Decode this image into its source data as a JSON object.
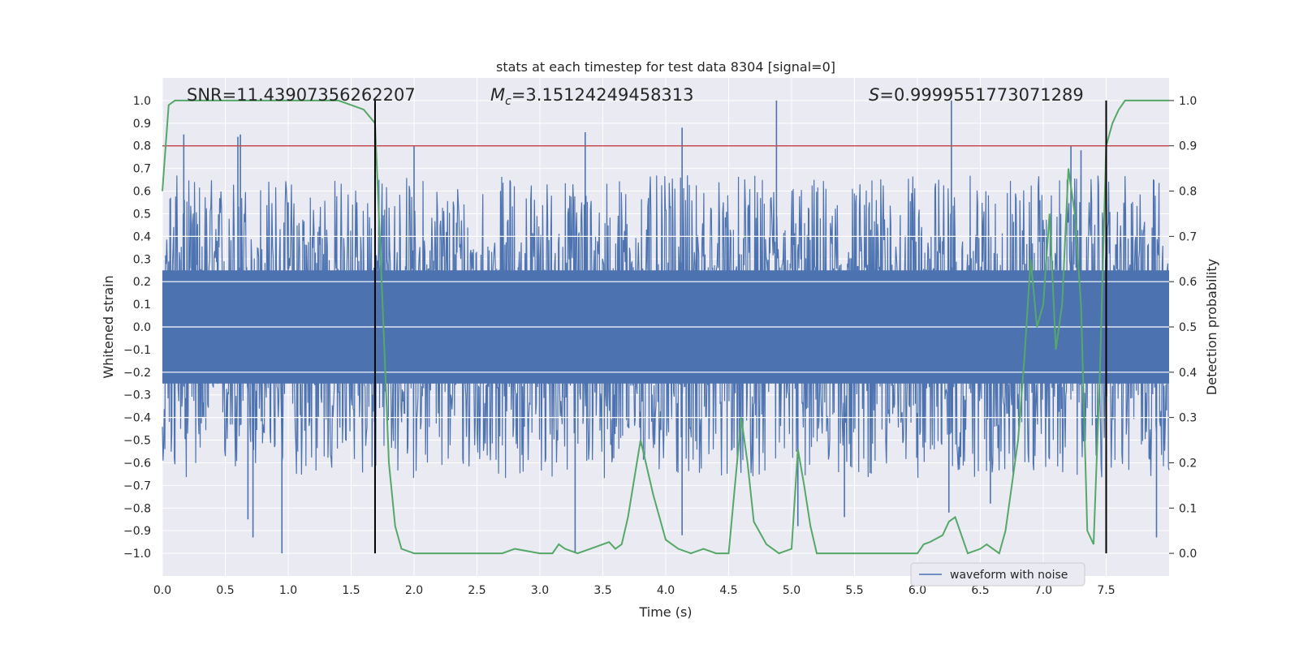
{
  "chart_data": {
    "type": "line",
    "title": "stats at each timestep for test data 8304 [signal=0]",
    "xlabel": "Time (s)",
    "ylabel": "Whitened strain",
    "y2label": "Detection probability",
    "xlim": [
      0.0,
      8.0
    ],
    "ylim": [
      -1.1,
      1.1
    ],
    "y2lim": [
      -0.05,
      1.05
    ],
    "xticks": [
      "0.0",
      "0.5",
      "1.0",
      "1.5",
      "2.0",
      "2.5",
      "3.0",
      "3.5",
      "4.0",
      "4.5",
      "5.0",
      "5.5",
      "6.0",
      "6.5",
      "7.0",
      "7.5"
    ],
    "yticks": [
      "1.0",
      "0.9",
      "0.8",
      "0.7",
      "0.6",
      "0.5",
      "0.4",
      "0.3",
      "0.2",
      "0.1",
      "0.0",
      "−0.1",
      "−0.2",
      "−0.3",
      "−0.4",
      "−0.5",
      "−0.6",
      "−0.7",
      "−0.8",
      "−0.9",
      "−1.0"
    ],
    "y2ticks": [
      "1.0",
      "0.9",
      "0.8",
      "0.7",
      "0.6",
      "0.5",
      "0.4",
      "0.3",
      "0.2",
      "0.1",
      "0.0"
    ],
    "annotations": {
      "snr": "SNR=11.43907356262207",
      "mc_symbol": "M",
      "mc_sub": "c",
      "mc_value": "=3.15124249458313",
      "s_symbol": "S",
      "s_value": "=0.9999551773071289"
    },
    "threshold": {
      "y2": 0.9,
      "color": "#c44e52"
    },
    "vlines": [
      1.69,
      7.5
    ],
    "series": [
      {
        "name": "waveform with noise",
        "color": "#4c72b0",
        "axis": "left",
        "kind": "noise",
        "spikes_up": [
          [
            0.17,
            0.85
          ],
          [
            0.6,
            0.84
          ],
          [
            0.62,
            0.85
          ],
          [
            1.0,
            0.55
          ],
          [
            2.0,
            0.8
          ],
          [
            3.36,
            0.86
          ],
          [
            4.13,
            0.88
          ],
          [
            4.88,
            1.0
          ],
          [
            6.27,
            1.0
          ],
          [
            7.22,
            0.8
          ],
          [
            7.3,
            0.78
          ]
        ],
        "spikes_down": [
          [
            0.95,
            -1.0
          ],
          [
            0.72,
            -0.93
          ],
          [
            0.68,
            -0.85
          ],
          [
            3.28,
            -1.0
          ],
          [
            4.13,
            -0.92
          ],
          [
            5.05,
            -0.88
          ],
          [
            5.42,
            -0.84
          ],
          [
            6.25,
            -0.82
          ],
          [
            6.58,
            -0.78
          ],
          [
            7.9,
            -0.93
          ]
        ]
      },
      {
        "name": "detection probability",
        "color": "#55a868",
        "axis": "right",
        "x": [
          0.0,
          0.05,
          0.1,
          0.2,
          0.3,
          0.5,
          0.8,
          1.0,
          1.2,
          1.4,
          1.5,
          1.6,
          1.69,
          1.75,
          1.8,
          1.85,
          1.9,
          2.0,
          2.1,
          2.3,
          2.5,
          2.7,
          2.8,
          3.0,
          3.1,
          3.15,
          3.2,
          3.3,
          3.4,
          3.5,
          3.55,
          3.6,
          3.65,
          3.7,
          3.8,
          3.9,
          4.0,
          4.1,
          4.2,
          4.3,
          4.4,
          4.5,
          4.6,
          4.65,
          4.7,
          4.8,
          4.9,
          5.0,
          5.05,
          5.1,
          5.15,
          5.2,
          5.3,
          5.5,
          5.8,
          6.0,
          6.05,
          6.1,
          6.2,
          6.25,
          6.3,
          6.4,
          6.5,
          6.55,
          6.6,
          6.65,
          6.7,
          6.8,
          6.85,
          6.9,
          6.95,
          7.0,
          7.05,
          7.1,
          7.15,
          7.2,
          7.25,
          7.3,
          7.35,
          7.4,
          7.45,
          7.5,
          7.55,
          7.6,
          7.65,
          7.8,
          8.0
        ],
        "y": [
          0.8,
          0.99,
          1.0,
          1.0,
          1.0,
          1.0,
          1.0,
          1.0,
          1.0,
          1.0,
          0.99,
          0.98,
          0.95,
          0.55,
          0.2,
          0.06,
          0.01,
          0.0,
          0.0,
          0.0,
          0.0,
          0.0,
          0.01,
          0.0,
          0.0,
          0.02,
          0.01,
          0.0,
          0.01,
          0.02,
          0.025,
          0.01,
          0.02,
          0.08,
          0.25,
          0.13,
          0.03,
          0.01,
          0.0,
          0.01,
          0.0,
          0.0,
          0.3,
          0.2,
          0.07,
          0.02,
          0.0,
          0.01,
          0.23,
          0.15,
          0.06,
          0.0,
          0.0,
          0.0,
          0.0,
          0.0,
          0.02,
          0.025,
          0.04,
          0.07,
          0.08,
          0.0,
          0.01,
          0.02,
          0.01,
          0.0,
          0.05,
          0.25,
          0.43,
          0.65,
          0.5,
          0.55,
          0.75,
          0.45,
          0.55,
          0.85,
          0.75,
          0.55,
          0.05,
          0.02,
          0.4,
          0.9,
          0.95,
          0.98,
          1.0,
          1.0,
          1.0
        ]
      }
    ]
  }
}
